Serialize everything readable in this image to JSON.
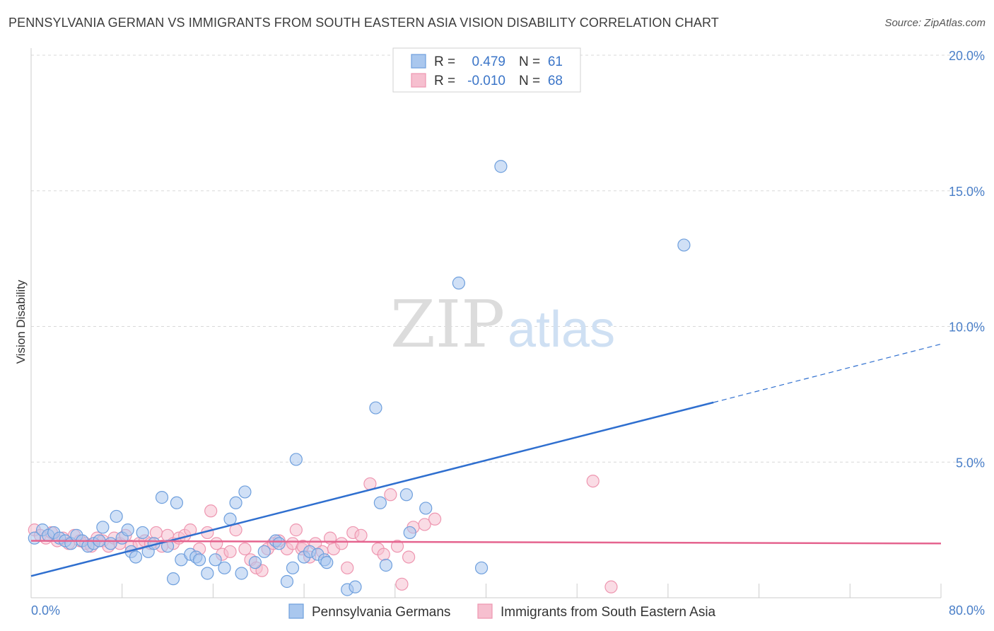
{
  "title": "PENNSYLVANIA GERMAN VS IMMIGRANTS FROM SOUTH EASTERN ASIA VISION DISABILITY CORRELATION CHART",
  "source": "Source: ZipAtlas.com",
  "watermark": {
    "zip": "ZIP",
    "atlas": "atlas"
  },
  "colors": {
    "blue_fill": "#a9c7ee",
    "blue_stroke": "#6e9fdd",
    "blue_line": "#2f6fcf",
    "pink_fill": "#f6bfcf",
    "pink_stroke": "#ee96b0",
    "pink_line": "#e5648f",
    "grid": "#d8d8d8",
    "tick_text": "#4a7fc8"
  },
  "chart_data": {
    "type": "scatter",
    "xlabel": "",
    "ylabel": "Vision Disability",
    "xlim": [
      0,
      80
    ],
    "ylim": [
      0,
      20
    ],
    "x_tick_labels": {
      "left": "0.0%",
      "right": "80.0%"
    },
    "y_ticks": [
      {
        "value": 5,
        "label": "5.0%"
      },
      {
        "value": 10,
        "label": "10.0%"
      },
      {
        "value": 15,
        "label": "15.0%"
      },
      {
        "value": 20,
        "label": "20.0%"
      }
    ],
    "legend": {
      "rows": [
        {
          "r_label": "R =",
          "r_value": "0.479",
          "n_label": "N =",
          "n_value": "61"
        },
        {
          "r_label": "R =",
          "r_value": "-0.010",
          "n_label": "N =",
          "n_value": "68"
        }
      ]
    },
    "series": [
      {
        "name": "Pennsylvania Germans",
        "r": 0.479,
        "n": 61,
        "trend": {
          "x0": 0,
          "y0": 0.8,
          "x1": 60,
          "y1": 7.2,
          "dashed_to_x": 80,
          "dashed_to_y": 9.35
        },
        "points": [
          [
            0.3,
            2.2
          ],
          [
            1.0,
            2.5
          ],
          [
            1.5,
            2.3
          ],
          [
            2.0,
            2.4
          ],
          [
            2.5,
            2.2
          ],
          [
            3.0,
            2.1
          ],
          [
            3.5,
            2.0
          ],
          [
            4.0,
            2.3
          ],
          [
            4.5,
            2.1
          ],
          [
            5.0,
            1.9
          ],
          [
            5.5,
            2.0
          ],
          [
            6.0,
            2.1
          ],
          [
            6.3,
            2.6
          ],
          [
            7.0,
            2.0
          ],
          [
            7.5,
            3.0
          ],
          [
            8.0,
            2.2
          ],
          [
            8.5,
            2.5
          ],
          [
            8.8,
            1.7
          ],
          [
            9.2,
            1.5
          ],
          [
            9.8,
            2.4
          ],
          [
            10.3,
            1.7
          ],
          [
            10.8,
            2.0
          ],
          [
            11.5,
            3.7
          ],
          [
            12.0,
            1.9
          ],
          [
            12.5,
            0.7
          ],
          [
            12.8,
            3.5
          ],
          [
            13.2,
            1.4
          ],
          [
            14.0,
            1.6
          ],
          [
            14.5,
            1.5
          ],
          [
            14.8,
            1.4
          ],
          [
            15.5,
            0.9
          ],
          [
            16.2,
            1.4
          ],
          [
            17.0,
            1.1
          ],
          [
            17.5,
            2.9
          ],
          [
            18.0,
            3.5
          ],
          [
            18.5,
            0.9
          ],
          [
            18.8,
            3.9
          ],
          [
            19.7,
            1.3
          ],
          [
            20.5,
            1.7
          ],
          [
            21.5,
            2.1
          ],
          [
            21.8,
            2.0
          ],
          [
            22.5,
            0.6
          ],
          [
            23.0,
            1.1
          ],
          [
            23.3,
            5.1
          ],
          [
            24.0,
            1.5
          ],
          [
            24.5,
            1.7
          ],
          [
            25.2,
            1.6
          ],
          [
            25.8,
            1.4
          ],
          [
            26.0,
            1.3
          ],
          [
            27.8,
            0.3
          ],
          [
            28.5,
            0.4
          ],
          [
            30.3,
            7.0
          ],
          [
            30.7,
            3.5
          ],
          [
            31.2,
            1.2
          ],
          [
            33.3,
            2.4
          ],
          [
            33.0,
            3.8
          ],
          [
            34.7,
            3.3
          ],
          [
            37.6,
            11.6
          ],
          [
            41.3,
            15.9
          ],
          [
            39.6,
            1.1
          ],
          [
            57.4,
            13.0
          ]
        ]
      },
      {
        "name": "Immigrants from South Eastern Asia",
        "r": -0.01,
        "n": 68,
        "trend": {
          "x0": 0,
          "y0": 2.1,
          "x1": 80,
          "y1": 2.0
        },
        "points": [
          [
            0.3,
            2.5
          ],
          [
            0.8,
            2.3
          ],
          [
            1.3,
            2.2
          ],
          [
            1.8,
            2.4
          ],
          [
            2.3,
            2.1
          ],
          [
            2.8,
            2.2
          ],
          [
            3.3,
            2.0
          ],
          [
            3.8,
            2.3
          ],
          [
            4.3,
            2.1
          ],
          [
            4.8,
            2.0
          ],
          [
            5.3,
            1.9
          ],
          [
            5.8,
            2.2
          ],
          [
            6.3,
            2.1
          ],
          [
            6.8,
            1.9
          ],
          [
            7.3,
            2.2
          ],
          [
            7.8,
            2.0
          ],
          [
            8.3,
            2.3
          ],
          [
            8.8,
            1.9
          ],
          [
            9.5,
            2.0
          ],
          [
            10.0,
            2.1
          ],
          [
            10.5,
            2.0
          ],
          [
            11.0,
            2.4
          ],
          [
            11.5,
            1.9
          ],
          [
            12.0,
            2.3
          ],
          [
            12.5,
            2.0
          ],
          [
            13.0,
            2.2
          ],
          [
            13.5,
            2.3
          ],
          [
            14.0,
            2.5
          ],
          [
            14.8,
            1.8
          ],
          [
            15.5,
            2.4
          ],
          [
            15.8,
            3.2
          ],
          [
            16.3,
            2.0
          ],
          [
            16.8,
            1.6
          ],
          [
            17.5,
            1.7
          ],
          [
            18.0,
            2.5
          ],
          [
            18.8,
            1.8
          ],
          [
            19.3,
            1.4
          ],
          [
            19.8,
            1.1
          ],
          [
            20.3,
            1.0
          ],
          [
            20.8,
            1.8
          ],
          [
            21.3,
            2.0
          ],
          [
            21.8,
            2.1
          ],
          [
            22.5,
            1.8
          ],
          [
            23.0,
            2.0
          ],
          [
            23.3,
            2.5
          ],
          [
            23.8,
            1.8
          ],
          [
            24.5,
            1.5
          ],
          [
            25.0,
            2.0
          ],
          [
            25.6,
            1.7
          ],
          [
            26.3,
            2.2
          ],
          [
            26.6,
            1.8
          ],
          [
            27.3,
            2.0
          ],
          [
            27.8,
            1.1
          ],
          [
            28.3,
            2.4
          ],
          [
            29.0,
            2.3
          ],
          [
            29.8,
            4.2
          ],
          [
            30.5,
            1.8
          ],
          [
            31.0,
            1.6
          ],
          [
            31.6,
            3.8
          ],
          [
            32.2,
            1.9
          ],
          [
            32.6,
            0.5
          ],
          [
            33.6,
            2.6
          ],
          [
            34.6,
            2.7
          ],
          [
            35.5,
            2.9
          ],
          [
            49.4,
            4.3
          ],
          [
            33.2,
            1.5
          ],
          [
            23.9,
            1.9
          ],
          [
            51.0,
            0.4
          ]
        ]
      }
    ]
  }
}
